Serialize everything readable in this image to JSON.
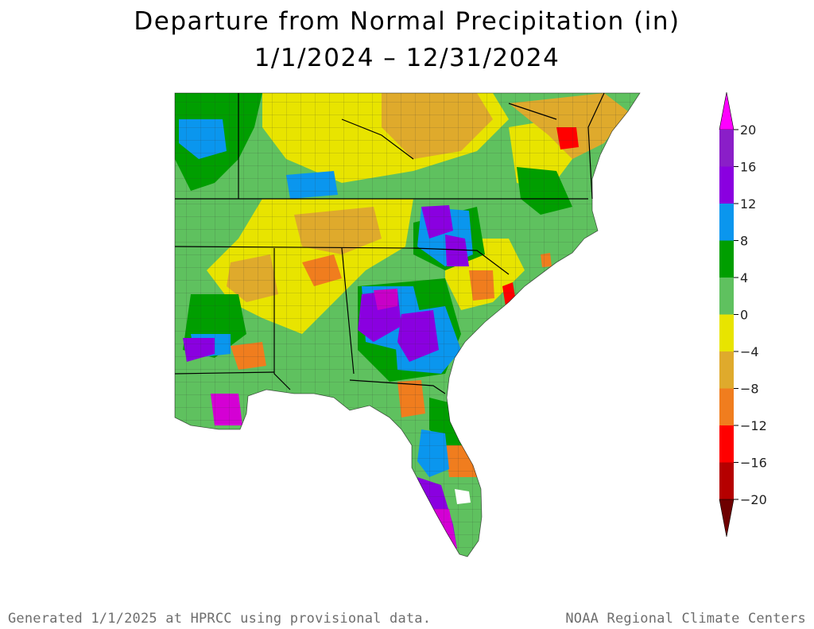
{
  "title": "Departure from Normal Precipitation (in)",
  "subtitle": "1/1/2024 – 12/31/2024",
  "footer_left": "Generated 1/1/2025 at HPRCC using provisional data.",
  "footer_right": "NOAA Regional Climate Centers",
  "legend": {
    "ticks": [
      "20",
      "16",
      "12",
      "8",
      "4",
      "0",
      "−4",
      "−8",
      "−12",
      "−16",
      "−20"
    ],
    "bins": [
      {
        "range": [
          16,
          20
        ],
        "color": "#8a1ec8"
      },
      {
        "range": [
          12,
          16
        ],
        "color": "#8a00e0"
      },
      {
        "range": [
          8,
          12
        ],
        "color": "#0a96ee"
      },
      {
        "range": [
          4,
          8
        ],
        "color": "#009e00"
      },
      {
        "range": [
          0,
          4
        ],
        "color": "#5fc15f"
      },
      {
        "range": [
          -4,
          0
        ],
        "color": "#e8e400"
      },
      {
        "range": [
          -8,
          -4
        ],
        "color": "#dfaa2c"
      },
      {
        "range": [
          -12,
          -8
        ],
        "color": "#f07d1e"
      },
      {
        "range": [
          -16,
          -12
        ],
        "color": "#ff0000"
      },
      {
        "range": [
          -20,
          -16
        ],
        "color": "#b50000"
      }
    ],
    "top_arrow_color": "#ff00ff",
    "bottom_arrow_color": "#6e0000"
  },
  "colors": {
    "water": "#ffffff",
    "state_border": "#000000"
  }
}
